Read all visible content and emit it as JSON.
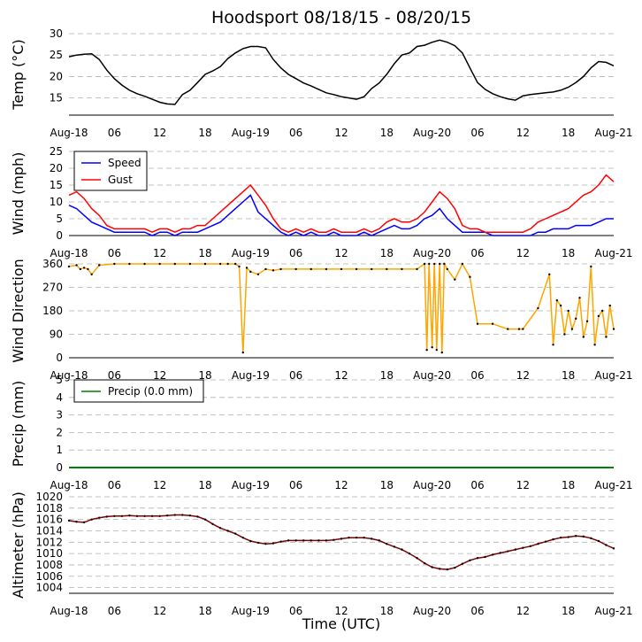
{
  "title": "Hoodsport 08/18/15 - 08/20/15",
  "colors": {
    "temp": "#000000",
    "speed": "#0000ff",
    "gust": "#ff0000",
    "direction": "#ffa500",
    "precip": "#008000",
    "altimeter": "#800000",
    "grid": "#b0b0b0"
  },
  "chart_data": [
    {
      "type": "line",
      "id": "temp",
      "ylabel": "Temp ($^\\circ$C)",
      "ylabel_display": "Temp (°C)",
      "ylim": [
        11,
        30
      ],
      "yticks": [
        15,
        20,
        25,
        30
      ],
      "x_unit": "hours since Aug-18 00 UTC",
      "xlim": [
        0,
        72
      ],
      "xtick_positions": [
        0,
        6,
        12,
        18,
        24,
        30,
        36,
        42,
        48,
        54,
        60,
        66,
        72
      ],
      "xtick_labels": [
        "Aug-18",
        "06",
        "12",
        "18",
        "Aug-19",
        "06",
        "12",
        "18",
        "Aug-20",
        "06",
        "12",
        "18",
        "Aug-21"
      ],
      "series": [
        {
          "name": "Temp",
          "x": [
            0,
            1,
            2,
            3,
            4,
            5,
            6,
            7,
            8,
            9,
            10,
            11,
            12,
            13,
            14,
            15,
            16,
            17,
            18,
            19,
            20,
            21,
            22,
            23,
            24,
            25,
            26,
            27,
            28,
            29,
            30,
            31,
            32,
            33,
            34,
            35,
            36,
            37,
            38,
            39,
            40,
            41,
            42,
            43,
            44,
            45,
            46,
            47,
            48,
            49,
            50,
            51,
            52,
            53,
            54,
            55,
            56,
            57,
            58,
            59,
            60,
            61,
            62,
            63,
            64,
            65,
            66,
            67,
            68,
            69,
            70,
            71,
            72
          ],
          "values": [
            24.6,
            25.0,
            25.2,
            25.3,
            24.0,
            21.5,
            19.5,
            18.0,
            16.8,
            16.0,
            15.4,
            14.7,
            14.0,
            13.6,
            13.5,
            15.8,
            16.8,
            18.6,
            20.5,
            21.3,
            22.3,
            24.2,
            25.5,
            26.5,
            27.0,
            27.0,
            26.7,
            24.0,
            22.0,
            20.5,
            19.5,
            18.5,
            17.8,
            17.0,
            16.2,
            15.8,
            15.3,
            15.0,
            14.7,
            15.3,
            17.2,
            18.5,
            20.5,
            23.0,
            25.0,
            25.5,
            27.0,
            27.3,
            28.0,
            28.5,
            28.0,
            27.2,
            25.5,
            22.0,
            18.6,
            17.0,
            16.0,
            15.3,
            14.8,
            14.5,
            15.5,
            15.8,
            16.0,
            16.2,
            16.4,
            16.8,
            17.5,
            18.6,
            20.0,
            22.0,
            23.5,
            23.3,
            22.5
          ]
        }
      ]
    },
    {
      "type": "line",
      "id": "wind",
      "ylabel": "Wind (mph)",
      "ylim": [
        0,
        25
      ],
      "yticks": [
        0,
        5,
        10,
        15,
        20,
        25
      ],
      "xlim": [
        0,
        72
      ],
      "xtick_positions": [
        0,
        6,
        12,
        18,
        24,
        30,
        36,
        42,
        48,
        54,
        60,
        66,
        72
      ],
      "xtick_labels": [
        "Aug-18",
        "06",
        "12",
        "18",
        "Aug-19",
        "06",
        "12",
        "18",
        "Aug-20",
        "06",
        "12",
        "18",
        "Aug-21"
      ],
      "legend": {
        "position": "upper-left",
        "entries": [
          "Speed",
          "Gust"
        ]
      },
      "series": [
        {
          "name": "Speed",
          "x": [
            0,
            1,
            2,
            3,
            4,
            5,
            6,
            7,
            8,
            9,
            10,
            11,
            12,
            13,
            14,
            15,
            16,
            17,
            18,
            19,
            20,
            21,
            22,
            23,
            24,
            25,
            26,
            27,
            28,
            29,
            30,
            31,
            32,
            33,
            34,
            35,
            36,
            37,
            38,
            39,
            40,
            41,
            42,
            43,
            44,
            45,
            46,
            47,
            48,
            49,
            50,
            51,
            52,
            53,
            54,
            55,
            56,
            57,
            58,
            59,
            60,
            61,
            62,
            63,
            64,
            65,
            66,
            67,
            68,
            69,
            70,
            71,
            72
          ],
          "values": [
            9,
            8,
            6,
            4,
            3,
            2,
            1,
            1,
            1,
            1,
            1,
            0,
            1,
            1,
            0,
            1,
            1,
            1,
            2,
            3,
            4,
            6,
            8,
            10,
            12,
            7,
            5,
            3,
            1,
            0,
            1,
            0,
            1,
            0,
            0,
            1,
            0,
            0,
            0,
            1,
            0,
            1,
            2,
            3,
            2,
            2,
            3,
            5,
            6,
            8,
            5,
            3,
            1,
            1,
            1,
            1,
            0,
            0,
            0,
            0,
            0,
            0,
            1,
            1,
            2,
            2,
            2,
            3,
            3,
            3,
            4,
            5,
            5
          ]
        },
        {
          "name": "Gust",
          "x": [
            0,
            1,
            2,
            3,
            4,
            5,
            6,
            7,
            8,
            9,
            10,
            11,
            12,
            13,
            14,
            15,
            16,
            17,
            18,
            19,
            20,
            21,
            22,
            23,
            24,
            25,
            26,
            27,
            28,
            29,
            30,
            31,
            32,
            33,
            34,
            35,
            36,
            37,
            38,
            39,
            40,
            41,
            42,
            43,
            44,
            45,
            46,
            47,
            48,
            49,
            50,
            51,
            52,
            53,
            54,
            55,
            56,
            57,
            58,
            59,
            60,
            61,
            62,
            63,
            64,
            65,
            66,
            67,
            68,
            69,
            70,
            71,
            72
          ],
          "values": [
            12,
            13,
            11,
            8,
            6,
            3,
            2,
            2,
            2,
            2,
            2,
            1,
            2,
            2,
            1,
            2,
            2,
            3,
            3,
            5,
            7,
            9,
            11,
            13,
            15,
            12,
            9,
            5,
            2,
            1,
            2,
            1,
            2,
            1,
            1,
            2,
            1,
            1,
            1,
            2,
            1,
            2,
            4,
            5,
            4,
            4,
            5,
            7,
            10,
            13,
            11,
            8,
            3,
            2,
            2,
            1,
            1,
            1,
            1,
            1,
            1,
            2,
            4,
            5,
            6,
            7,
            8,
            10,
            12,
            13,
            15,
            18,
            16
          ]
        }
      ]
    },
    {
      "type": "line",
      "id": "direction",
      "ylabel": "Wind Direction",
      "ylim": [
        0,
        360
      ],
      "yticks": [
        0,
        90,
        180,
        270,
        360
      ],
      "xlim": [
        0,
        72
      ],
      "xtick_positions": [
        0,
        6,
        12,
        18,
        24,
        30,
        36,
        42,
        48,
        54,
        60,
        66,
        72
      ],
      "xtick_labels": [
        "Aug-18",
        "06",
        "12",
        "18",
        "Aug-19",
        "06",
        "12",
        "18",
        "Aug-20",
        "06",
        "12",
        "18",
        "Aug-21"
      ],
      "series": [
        {
          "name": "Direction",
          "x": [
            0,
            1,
            1.5,
            2,
            2.5,
            3,
            4,
            6,
            8,
            10,
            12,
            14,
            16,
            18,
            20,
            21,
            22,
            22.5,
            23,
            23.5,
            24,
            25,
            26,
            27,
            28,
            30,
            32,
            34,
            36,
            38,
            40,
            42,
            44,
            46,
            47,
            47.3,
            47.6,
            48,
            48.3,
            48.6,
            49,
            49.3,
            49.6,
            50,
            51,
            52,
            53,
            54,
            56,
            58,
            59.5,
            60,
            62,
            63.5,
            64,
            64.5,
            65,
            65.5,
            66,
            66.5,
            67,
            67.5,
            68,
            68.5,
            69,
            69.5,
            70,
            70.5,
            71,
            71.5,
            72
          ],
          "values": [
            350,
            355,
            340,
            345,
            340,
            320,
            355,
            360,
            360,
            360,
            360,
            360,
            360,
            360,
            360,
            360,
            360,
            350,
            20,
            345,
            330,
            320,
            340,
            335,
            340,
            340,
            340,
            340,
            340,
            340,
            340,
            340,
            340,
            340,
            360,
            30,
            360,
            40,
            360,
            30,
            360,
            20,
            360,
            340,
            300,
            360,
            310,
            130,
            130,
            110,
            110,
            110,
            190,
            320,
            50,
            220,
            200,
            90,
            180,
            110,
            150,
            230,
            80,
            140,
            350,
            50,
            160,
            180,
            80,
            200,
            110
          ]
        }
      ]
    },
    {
      "type": "line",
      "id": "precip",
      "ylabel": "Precip (mm)",
      "ylim": [
        0,
        5
      ],
      "yticks": [
        0,
        1,
        2,
        3,
        4,
        5
      ],
      "xlim": [
        0,
        72
      ],
      "xtick_positions": [
        0,
        6,
        12,
        18,
        24,
        30,
        36,
        42,
        48,
        54,
        60,
        66,
        72
      ],
      "xtick_labels": [
        "Aug-18",
        "06",
        "12",
        "18",
        "Aug-19",
        "06",
        "12",
        "18",
        "Aug-20",
        "06",
        "12",
        "18",
        "Aug-21"
      ],
      "legend": {
        "position": "upper-left",
        "entries": [
          "Precip (0.0 mm)"
        ]
      },
      "series": [
        {
          "name": "Precip (0.0 mm)",
          "x": [
            0,
            72
          ],
          "values": [
            0,
            0
          ]
        }
      ]
    },
    {
      "type": "line",
      "id": "altimeter",
      "ylabel": "Altimeter (hPa)",
      "xlabel": "Time (UTC)",
      "ylim": [
        1003,
        1020
      ],
      "yticks": [
        1004,
        1006,
        1008,
        1010,
        1012,
        1014,
        1016,
        1018,
        1020
      ],
      "xlim": [
        0,
        72
      ],
      "xtick_positions": [
        0,
        6,
        12,
        18,
        24,
        30,
        36,
        42,
        48,
        54,
        60,
        66,
        72
      ],
      "xtick_labels": [
        "Aug-18",
        "06",
        "12",
        "18",
        "Aug-19",
        "06",
        "12",
        "18",
        "Aug-20",
        "06",
        "12",
        "18",
        "Aug-21"
      ],
      "series": [
        {
          "name": "Altimeter",
          "x": [
            0,
            1,
            2,
            3,
            4,
            5,
            6,
            7,
            8,
            9,
            10,
            11,
            12,
            13,
            14,
            15,
            16,
            17,
            18,
            19,
            20,
            21,
            22,
            23,
            24,
            25,
            26,
            27,
            28,
            29,
            30,
            31,
            32,
            33,
            34,
            35,
            36,
            37,
            38,
            39,
            40,
            41,
            42,
            43,
            44,
            45,
            46,
            47,
            48,
            49,
            50,
            51,
            52,
            53,
            54,
            55,
            56,
            57,
            58,
            59,
            60,
            61,
            62,
            63,
            64,
            65,
            66,
            67,
            68,
            69,
            70,
            71,
            72
          ],
          "values": [
            1015.8,
            1015.6,
            1015.5,
            1016.0,
            1016.3,
            1016.5,
            1016.6,
            1016.6,
            1016.7,
            1016.6,
            1016.6,
            1016.6,
            1016.6,
            1016.7,
            1016.8,
            1016.8,
            1016.7,
            1016.5,
            1016.0,
            1015.2,
            1014.5,
            1014.0,
            1013.5,
            1012.8,
            1012.2,
            1011.9,
            1011.7,
            1011.8,
            1012.1,
            1012.3,
            1012.3,
            1012.3,
            1012.3,
            1012.3,
            1012.3,
            1012.4,
            1012.6,
            1012.8,
            1012.8,
            1012.8,
            1012.6,
            1012.3,
            1011.7,
            1011.2,
            1010.7,
            1010.0,
            1009.2,
            1008.3,
            1007.6,
            1007.3,
            1007.2,
            1007.5,
            1008.2,
            1008.8,
            1009.2,
            1009.4,
            1009.8,
            1010.1,
            1010.4,
            1010.7,
            1011.0,
            1011.3,
            1011.7,
            1012.1,
            1012.5,
            1012.8,
            1012.9,
            1013.1,
            1013.0,
            1012.7,
            1012.2,
            1011.5,
            1010.9
          ]
        }
      ]
    }
  ]
}
